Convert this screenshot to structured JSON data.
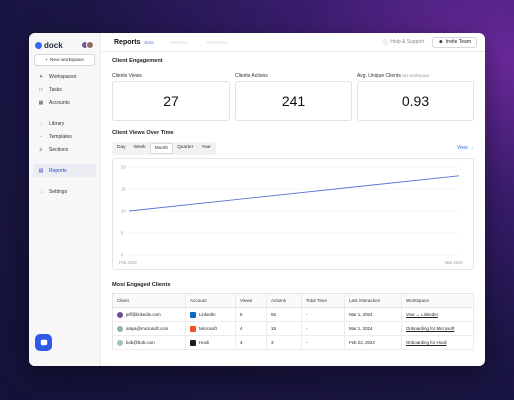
{
  "app": {
    "logo_text": "dock"
  },
  "sidebar": {
    "new_workspace": "New workspace",
    "items": [
      {
        "label": "Workspaces",
        "icon": "workspaces-icon"
      },
      {
        "label": "Tasks",
        "icon": "tasks-icon"
      },
      {
        "label": "Accounts",
        "icon": "accounts-icon"
      },
      {
        "label": "Library",
        "icon": "library-icon"
      },
      {
        "label": "Templates",
        "icon": "templates-icon"
      },
      {
        "label": "Sections",
        "icon": "sections-icon"
      },
      {
        "label": "Reports",
        "icon": "reports-icon"
      },
      {
        "label": "Settings",
        "icon": "settings-icon"
      }
    ],
    "active": "Reports"
  },
  "header": {
    "title": "Reports",
    "badge": "Beta",
    "help": "Help & Support",
    "invite": "Invite Team"
  },
  "engagement": {
    "title": "Client Engagement",
    "metrics": [
      {
        "label": "Clients Views",
        "sub": "",
        "value": "27"
      },
      {
        "label": "Clients Actions",
        "sub": "",
        "value": "241"
      },
      {
        "label": "Avg. Unique Clients",
        "sub": "per workspace",
        "value": "0.93"
      }
    ]
  },
  "views_chart": {
    "title": "Client Views Over Time",
    "ranges": [
      "Day",
      "Week",
      "Month",
      "Quarter",
      "Year"
    ],
    "active_range": "Month",
    "view_link": "View →"
  },
  "chart_data": {
    "type": "line",
    "x": [
      "Feb 2024",
      "Mar 2024"
    ],
    "series": [
      {
        "values": [
          10,
          18
        ]
      }
    ],
    "ylim": [
      0,
      20
    ],
    "yticks": [
      "20",
      "15",
      "10",
      "5",
      "0"
    ],
    "xticks": [
      "Feb 2024",
      "Mar 2024"
    ],
    "grid": true,
    "line_color": "#5b74d6"
  },
  "clients": {
    "title": "Most Engaged Clients",
    "columns": [
      "Client",
      "Account",
      "Views",
      "Actions",
      "Total Time",
      "Last interaction",
      "Workspace"
    ],
    "rows": [
      {
        "client": "jeff@linkedin.com",
        "account": "LinkedIn",
        "views": "5",
        "actions": "55",
        "total_time": "-",
        "last": "Mar 1, 2024",
        "workspace": "Viva ↔ LinkedIn",
        "avatar_color": "#6b4fa0",
        "logo_color": "#0a66c2"
      },
      {
        "client": "satya@microsoft.com",
        "account": "Microsoft",
        "views": "4",
        "actions": "18",
        "total_time": "-",
        "last": "Mar 1, 2024",
        "workspace": "Onboarding for Microsoft",
        "avatar_color": "#8fb3a8",
        "logo_color": "#f25022"
      },
      {
        "client": "bob@bob.com",
        "account": "Hooli",
        "views": "3",
        "actions": "3",
        "total_time": "-",
        "last": "Feb 22, 2024",
        "workspace": "Onboarding for Hooli",
        "avatar_color": "#9ec3b5",
        "logo_color": "#1e1e1e"
      }
    ]
  }
}
